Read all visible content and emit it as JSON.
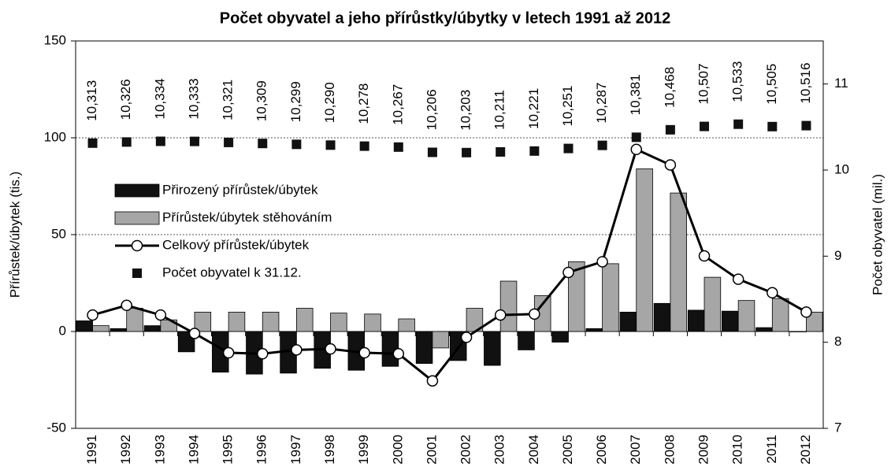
{
  "chart_data": {
    "type": "bar",
    "title": "Počet obyvatel  a jeho přírůstky/úbytky  v letech 1991 až 2012",
    "y_label": "Přírůstek/úbytek (tis.)",
    "y2_label": "Počet obyvatel (mil.)",
    "categories": [
      "1991",
      "1992",
      "1993",
      "1994",
      "1995",
      "1996",
      "1997",
      "1998",
      "1999",
      "2000",
      "2001",
      "2002",
      "2003",
      "2004",
      "2005",
      "2006",
      "2007",
      "2008",
      "2009",
      "2010",
      "2011",
      "2012"
    ],
    "ylim": [
      -50,
      150
    ],
    "yticks": [
      -50,
      0,
      50,
      100,
      150
    ],
    "y2lim": [
      7,
      11.5
    ],
    "y2ticks": [
      7,
      8,
      9,
      10,
      11
    ],
    "grid": true,
    "legend": "center left",
    "series": [
      {
        "name": "Přirozený přírůstek/úbytek",
        "type": "bar",
        "color": "#111111",
        "values": [
          5.5,
          1.5,
          3,
          -10.5,
          -21,
          -22,
          -21.5,
          -19,
          -20,
          -18,
          -16.5,
          -15,
          -17.5,
          -9.5,
          -5.5,
          1.5,
          10,
          14.5,
          11,
          10.5,
          2,
          0
        ]
      },
      {
        "name": "Přírůstek/úbytek stěhováním",
        "type": "bar",
        "color": "#a6a6a6",
        "values": [
          3,
          12,
          6,
          10,
          10,
          10,
          12,
          9.5,
          9,
          6.5,
          -8.5,
          12,
          26,
          18.5,
          36,
          35,
          84,
          71.5,
          28,
          16,
          17,
          10
        ]
      },
      {
        "name": "Celkový přírůstek/úbytek",
        "type": "line",
        "color": "#000000",
        "values": [
          8.5,
          13.5,
          8.5,
          -1,
          -11,
          -11.5,
          -9.5,
          -9,
          -11,
          -11.5,
          -25.5,
          -3,
          8.5,
          9,
          30.5,
          36,
          94,
          86,
          39,
          27,
          20,
          10
        ]
      },
      {
        "name": "Počet obyvatel k 31.12.",
        "type": "scatter",
        "axis": "y2",
        "color": "#111111",
        "values": [
          10.313,
          10.326,
          10.334,
          10.333,
          10.321,
          10.309,
          10.299,
          10.29,
          10.278,
          10.267,
          10.206,
          10.203,
          10.211,
          10.221,
          10.251,
          10.287,
          10.381,
          10.468,
          10.507,
          10.533,
          10.505,
          10.516
        ],
        "value_labels": [
          "10,313",
          "10,326",
          "10,334",
          "10,333",
          "10,321",
          "10,309",
          "10,299",
          "10,290",
          "10,278",
          "10,267",
          "10,206",
          "10,203",
          "10,211",
          "10,221",
          "10,251",
          "10,287",
          "10,381",
          "10,468",
          "10,507",
          "10,533",
          "10,505",
          "10,516"
        ]
      }
    ]
  }
}
